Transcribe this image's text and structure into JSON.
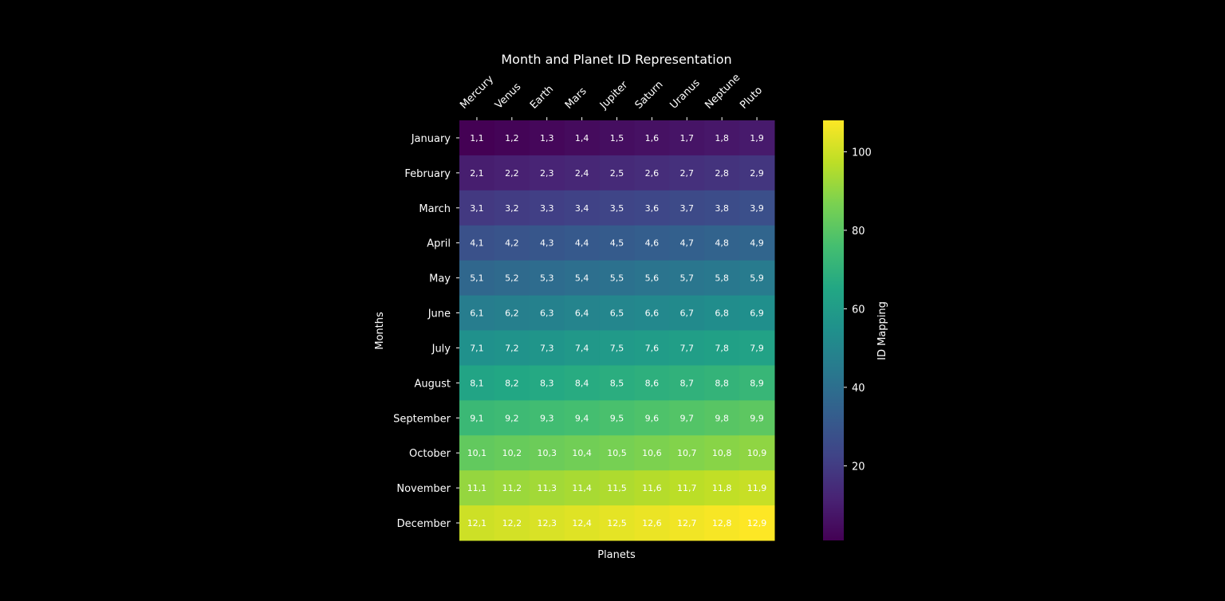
{
  "chart_data": {
    "type": "heatmap",
    "title": "Month and Planet ID Representation",
    "xlabel": "Planets",
    "ylabel": "Months",
    "colorbar_label": "ID Mapping",
    "x_categories": [
      "Mercury",
      "Venus",
      "Earth",
      "Mars",
      "Jupiter",
      "Saturn",
      "Uranus",
      "Neptune",
      "Pluto"
    ],
    "y_categories": [
      "January",
      "February",
      "March",
      "April",
      "May",
      "June",
      "July",
      "August",
      "September",
      "October",
      "November",
      "December"
    ],
    "values": [
      [
        1,
        2,
        3,
        4,
        5,
        6,
        7,
        8,
        9
      ],
      [
        10,
        11,
        12,
        13,
        14,
        15,
        16,
        17,
        18
      ],
      [
        19,
        20,
        21,
        22,
        23,
        24,
        25,
        26,
        27
      ],
      [
        28,
        29,
        30,
        31,
        32,
        33,
        34,
        35,
        36
      ],
      [
        37,
        38,
        39,
        40,
        41,
        42,
        43,
        44,
        45
      ],
      [
        46,
        47,
        48,
        49,
        50,
        51,
        52,
        53,
        54
      ],
      [
        55,
        56,
        57,
        58,
        59,
        60,
        61,
        62,
        63
      ],
      [
        64,
        65,
        66,
        67,
        68,
        69,
        70,
        71,
        72
      ],
      [
        73,
        74,
        75,
        76,
        77,
        78,
        79,
        80,
        81
      ],
      [
        82,
        83,
        84,
        85,
        86,
        87,
        88,
        89,
        90
      ],
      [
        91,
        92,
        93,
        94,
        95,
        96,
        97,
        98,
        99
      ],
      [
        100,
        101,
        102,
        103,
        104,
        105,
        106,
        107,
        108
      ]
    ],
    "cell_labels": [
      [
        "1,1",
        "1,2",
        "1,3",
        "1,4",
        "1,5",
        "1,6",
        "1,7",
        "1,8",
        "1,9"
      ],
      [
        "2,1",
        "2,2",
        "2,3",
        "2,4",
        "2,5",
        "2,6",
        "2,7",
        "2,8",
        "2,9"
      ],
      [
        "3,1",
        "3,2",
        "3,3",
        "3,4",
        "3,5",
        "3,6",
        "3,7",
        "3,8",
        "3,9"
      ],
      [
        "4,1",
        "4,2",
        "4,3",
        "4,4",
        "4,5",
        "4,6",
        "4,7",
        "4,8",
        "4,9"
      ],
      [
        "5,1",
        "5,2",
        "5,3",
        "5,4",
        "5,5",
        "5,6",
        "5,7",
        "5,8",
        "5,9"
      ],
      [
        "6,1",
        "6,2",
        "6,3",
        "6,4",
        "6,5",
        "6,6",
        "6,7",
        "6,8",
        "6,9"
      ],
      [
        "7,1",
        "7,2",
        "7,3",
        "7,4",
        "7,5",
        "7,6",
        "7,7",
        "7,8",
        "7,9"
      ],
      [
        "8,1",
        "8,2",
        "8,3",
        "8,4",
        "8,5",
        "8,6",
        "8,7",
        "8,8",
        "8,9"
      ],
      [
        "9,1",
        "9,2",
        "9,3",
        "9,4",
        "9,5",
        "9,6",
        "9,7",
        "9,8",
        "9,9"
      ],
      [
        "10,1",
        "10,2",
        "10,3",
        "10,4",
        "10,5",
        "10,6",
        "10,7",
        "10,8",
        "10,9"
      ],
      [
        "11,1",
        "11,2",
        "11,3",
        "11,4",
        "11,5",
        "11,6",
        "11,7",
        "11,8",
        "11,9"
      ],
      [
        "12,1",
        "12,2",
        "12,3",
        "12,4",
        "12,5",
        "12,6",
        "12,7",
        "12,8",
        "12,9"
      ]
    ],
    "colorbar_ticks": [
      "20",
      "40",
      "60",
      "80",
      "100"
    ],
    "colorbar_range": [
      1,
      108
    ],
    "colormap": "viridis",
    "x_tick_position": "top",
    "grid": false
  },
  "colors": {
    "background": "#000000",
    "text": "#ffffff"
  }
}
